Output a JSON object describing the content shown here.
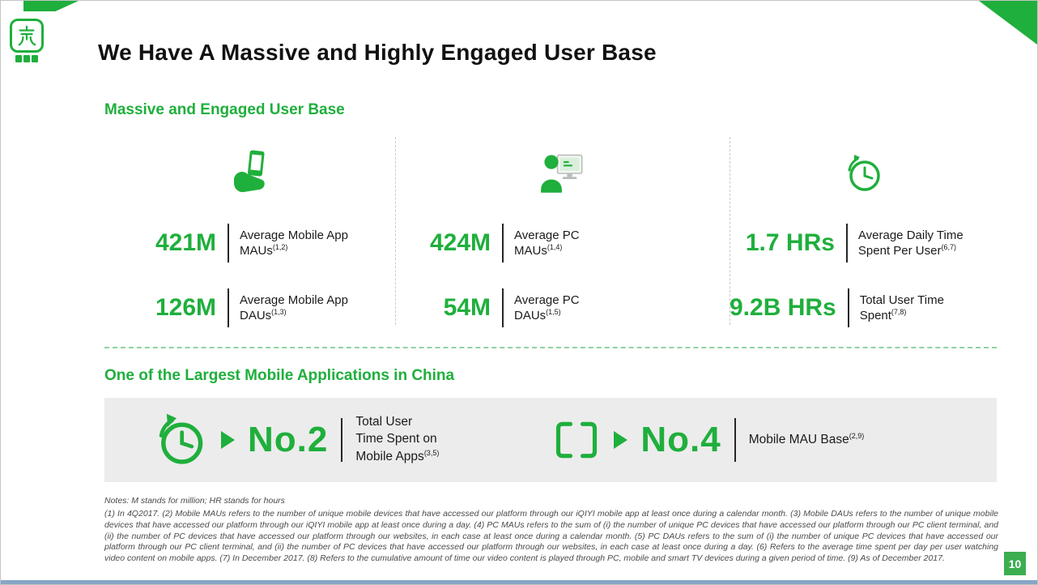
{
  "slide": {
    "title": "We Have A Massive and Highly Engaged User Base",
    "page_number": "10"
  },
  "colors": {
    "accent_green": "#1FAF3C",
    "band_gray": "#ECECEC",
    "bottom_strip_blue": "#87A5C5"
  },
  "user_base": {
    "heading": "Massive and Engaged User Base",
    "columns": [
      {
        "icon": "mobile-app-hand-icon",
        "stats": [
          {
            "value": "421M",
            "label_lines": [
              "Average Mobile App",
              "MAUs"
            ],
            "note": "(1,2)"
          },
          {
            "value": "126M",
            "label_lines": [
              "Average Mobile App",
              "DAUs"
            ],
            "note": "(1,3)"
          }
        ]
      },
      {
        "icon": "pc-user-icon",
        "stats": [
          {
            "value": "424M",
            "label_lines": [
              "Average PC",
              "MAUs"
            ],
            "note": "(1,4)"
          },
          {
            "value": "54M",
            "label_lines": [
              "Average PC",
              "DAUs"
            ],
            "note": "(1,5)"
          }
        ]
      },
      {
        "icon": "clock-icon",
        "stats": [
          {
            "value": "1.7 HRs",
            "label_lines": [
              "Average Daily Time",
              "Spent Per User"
            ],
            "note": "(6,7)"
          },
          {
            "value": "9.2B HRs",
            "label_lines": [
              "Total User Time",
              "Spent"
            ],
            "note": "(7,8)"
          }
        ]
      }
    ]
  },
  "rankings": {
    "heading": "One of the Largest Mobile Applications in China",
    "items": [
      {
        "icon": "clock-circular-arrow-icon",
        "rank": "No.2",
        "label_lines": [
          "Total User",
          "Time Spent on",
          "Mobile Apps"
        ],
        "note": "(3,5)"
      },
      {
        "icon": "mobile-phone-outline-icon",
        "rank": "No.4",
        "label_lines": [
          "Mobile MAU Base"
        ],
        "note": "(2,9)"
      }
    ]
  },
  "notes": {
    "intro": "Notes: M stands for million; HR stands for hours",
    "body": "(1) In 4Q2017. (2) Mobile MAUs refers to the number of unique mobile devices that have accessed our platform through our iQIYI mobile app at least once during a calendar month. (3) Mobile DAUs refers to the number of unique mobile devices that have accessed our platform through our iQIYI mobile app at least once during a day. (4) PC MAUs refers to the sum of (i) the number of unique PC devices that have accessed our platform through our PC client terminal, and (ii) the number of PC devices that have accessed our platform through our websites, in each case at least once during a calendar month. (5) PC DAUs refers to the sum of (i) the number of unique PC devices that have accessed our platform through our PC client terminal, and (ii) the number of PC devices that have accessed our platform through our websites, in each case at least once during a day. (6) Refers to the average time spent per day per user watching video content on mobile apps. (7) In December 2017. (8) Refers to the cumulative amount of time our video content is played through PC, mobile and smart TV devices during a given period of time. (9) As of December 2017."
  }
}
